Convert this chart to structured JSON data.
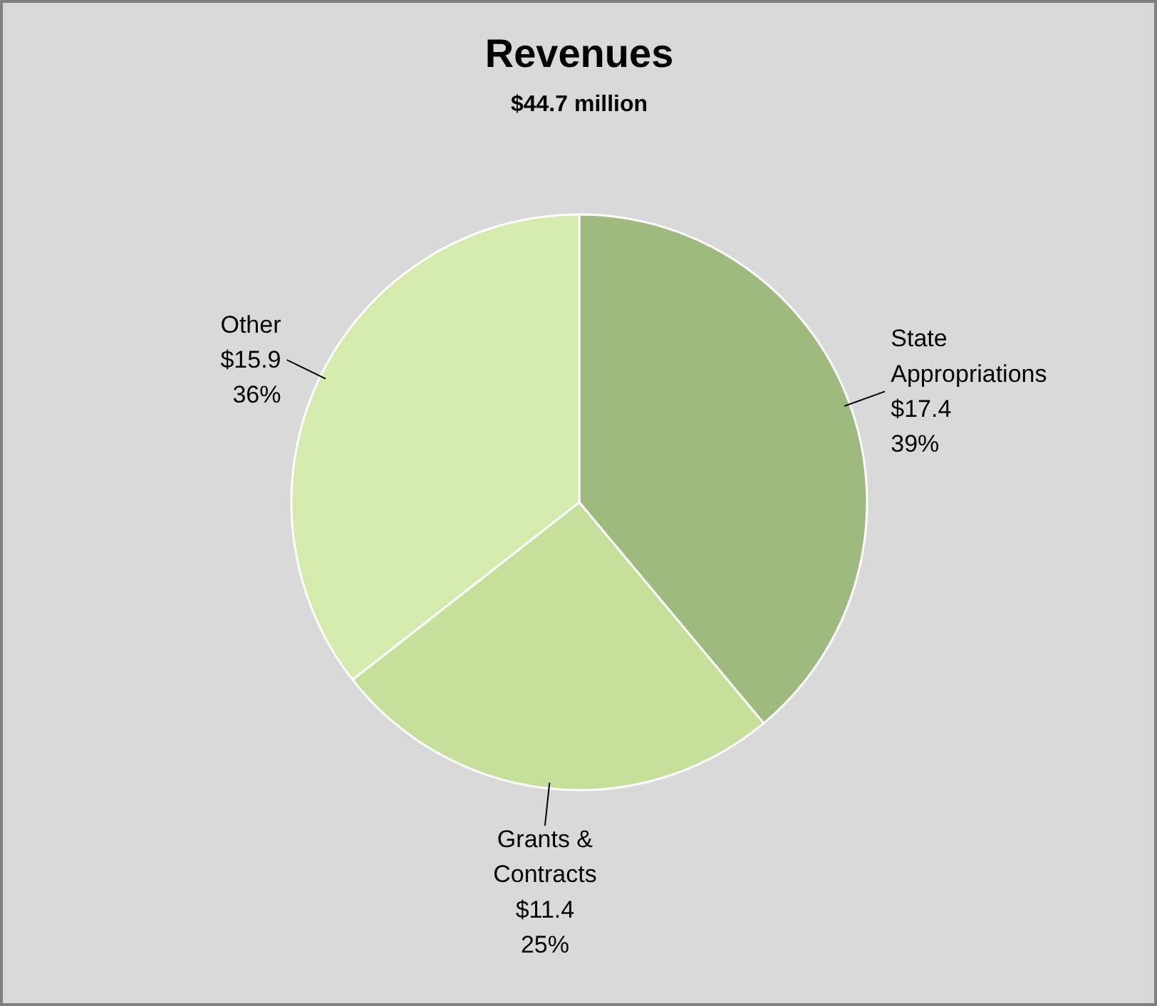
{
  "chart_data": {
    "type": "pie",
    "title": "Revenues",
    "subtitle": "$44.7 million",
    "categories": [
      "State Appropriations",
      "Grants & Contracts",
      "Other"
    ],
    "values": [
      17.4,
      11.4,
      15.9
    ],
    "value_labels": [
      "$17.4\n39%",
      "$11.4\n25%",
      "$15.9\n36%"
    ],
    "colors": [
      "#9fba7e",
      "#c6e09c",
      "#d5eaad"
    ]
  }
}
